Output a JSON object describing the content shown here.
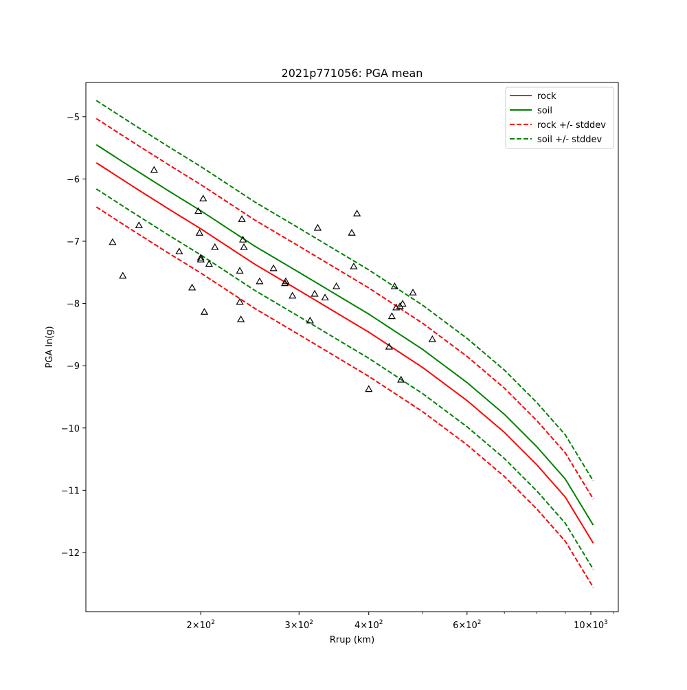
{
  "chart_data": {
    "type": "line",
    "title": "2021p771056: PGA mean",
    "xlabel": "Rrup (km)",
    "ylabel": "PGA ln(g)",
    "xscale": "log",
    "xlim": [
      124.5,
      1120
    ],
    "ylim": [
      -12.95,
      -4.45
    ],
    "grid": false,
    "legend_position": "top-right",
    "x_ticks": [
      {
        "value": 200,
        "base": "2",
        "exp": "2"
      },
      {
        "value": 300,
        "base": "3",
        "exp": "2"
      },
      {
        "value": 400,
        "base": "4",
        "exp": "2"
      },
      {
        "value": 600,
        "base": "6",
        "exp": "2"
      },
      {
        "value": 1000,
        "base": "10",
        "exp": "3"
      }
    ],
    "y_ticks": [
      -12,
      -11,
      -10,
      -9,
      -8,
      -7,
      -6,
      -5
    ],
    "y_tick_labels": [
      "−12",
      "−11",
      "−10",
      "−9",
      "−8",
      "−7",
      "−6",
      "−5"
    ],
    "x": [
      130,
      150,
      175,
      200,
      250,
      300,
      400,
      500,
      600,
      700,
      800,
      900,
      1010
    ],
    "series": [
      {
        "name": "rock",
        "color": "#ff0000",
        "style": "solid",
        "values": [
          -5.74,
          -6.1,
          -6.48,
          -6.8,
          -7.37,
          -7.79,
          -8.46,
          -9.03,
          -9.56,
          -10.07,
          -10.59,
          -11.11,
          -11.85
        ]
      },
      {
        "name": "soil",
        "color": "#008000",
        "style": "solid",
        "values": [
          -5.45,
          -5.81,
          -6.19,
          -6.51,
          -7.08,
          -7.5,
          -8.17,
          -8.74,
          -9.27,
          -9.78,
          -10.3,
          -10.82,
          -11.56
        ]
      },
      {
        "name": "rock +/- stddev",
        "color": "#ff0000",
        "style": "dashed",
        "values": [
          -5.03,
          -5.39,
          -5.77,
          -6.09,
          -6.66,
          -7.08,
          -7.75,
          -8.32,
          -8.85,
          -9.36,
          -9.88,
          -10.4,
          -11.14
        ]
      },
      {
        "name": "rock +/- stddev",
        "color": "#ff0000",
        "style": "dashed",
        "legend": false,
        "values": [
          -6.45,
          -6.81,
          -7.19,
          -7.51,
          -8.08,
          -8.5,
          -9.17,
          -9.74,
          -10.27,
          -10.78,
          -11.3,
          -11.82,
          -12.56
        ]
      },
      {
        "name": "soil +/- stddev",
        "color": "#008000",
        "style": "dashed",
        "values": [
          -4.74,
          -5.1,
          -5.48,
          -5.8,
          -6.37,
          -6.79,
          -7.46,
          -8.03,
          -8.56,
          -9.07,
          -9.59,
          -10.11,
          -10.85
        ]
      },
      {
        "name": "soil +/- stddev",
        "color": "#008000",
        "style": "dashed",
        "legend": false,
        "values": [
          -6.16,
          -6.52,
          -6.9,
          -7.22,
          -7.79,
          -8.21,
          -8.88,
          -9.45,
          -9.98,
          -10.49,
          -11.01,
          -11.53,
          -12.27
        ]
      }
    ],
    "observations": {
      "marker": "triangle",
      "color": "#000000",
      "points": [
        [
          139,
          -7.02
        ],
        [
          145,
          -7.56
        ],
        [
          155,
          -6.75
        ],
        [
          165,
          -5.86
        ],
        [
          183,
          -7.17
        ],
        [
          193,
          -7.75
        ],
        [
          198,
          -6.52
        ],
        [
          199,
          -6.87
        ],
        [
          200,
          -7.27
        ],
        [
          200,
          -7.3
        ],
        [
          202,
          -6.32
        ],
        [
          203,
          -8.14
        ],
        [
          207,
          -7.37
        ],
        [
          212,
          -7.1
        ],
        [
          235,
          -7.48
        ],
        [
          235,
          -7.98
        ],
        [
          236,
          -8.26
        ],
        [
          237,
          -6.65
        ],
        [
          238,
          -6.98
        ],
        [
          239,
          -7.1
        ],
        [
          255,
          -7.65
        ],
        [
          270,
          -7.44
        ],
        [
          283,
          -7.68
        ],
        [
          284,
          -7.65
        ],
        [
          292,
          -7.88
        ],
        [
          314,
          -8.28
        ],
        [
          320,
          -7.85
        ],
        [
          324,
          -6.79
        ],
        [
          334,
          -7.91
        ],
        [
          350,
          -7.73
        ],
        [
          373,
          -6.87
        ],
        [
          376,
          -7.41
        ],
        [
          381,
          -6.56
        ],
        [
          400,
          -9.38
        ],
        [
          435,
          -8.7
        ],
        [
          440,
          -8.21
        ],
        [
          445,
          -7.73
        ],
        [
          448,
          -8.07
        ],
        [
          455,
          -8.05
        ],
        [
          457,
          -9.23
        ],
        [
          460,
          -8.01
        ],
        [
          480,
          -7.83
        ],
        [
          520,
          -8.58
        ]
      ]
    }
  }
}
